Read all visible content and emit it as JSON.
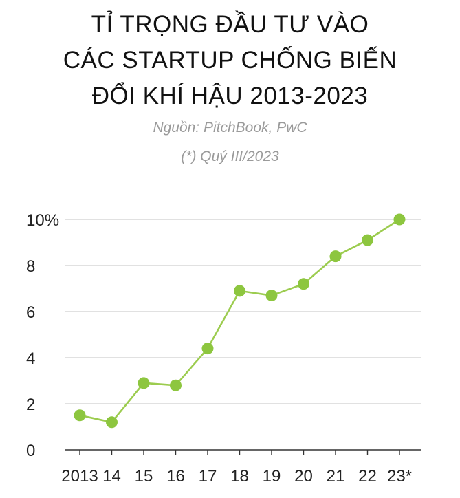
{
  "title_lines": [
    "TỈ TRỌNG ĐẦU TƯ VÀO",
    "CÁC STARTUP CHỐNG BIẾN",
    "ĐỔI KHÍ HẬU 2013-2023"
  ],
  "source": "Nguồn: PitchBook, PwC",
  "note": "(*) Quý III/2023",
  "colors": {
    "line": "#9ccc4f",
    "marker": "#8dc63f",
    "grid": "#cfcfcf",
    "axis": "#333333",
    "text": "#222222"
  },
  "chart_data": {
    "type": "line",
    "title": "TỈ TRỌNG ĐẦU TƯ VÀO CÁC STARTUP CHỐNG BIẾN ĐỔI KHÍ HẬU 2013-2023",
    "categories": [
      "2013",
      "14",
      "15",
      "16",
      "17",
      "18",
      "19",
      "20",
      "21",
      "22",
      "23*"
    ],
    "series": [
      {
        "name": "Tỉ trọng đầu tư",
        "values": [
          1.5,
          1.2,
          2.9,
          2.8,
          4.4,
          6.9,
          6.7,
          7.2,
          8.4,
          9.1,
          10.0
        ]
      }
    ],
    "y_ticks": [
      {
        "value": 0,
        "label": "0"
      },
      {
        "value": 2,
        "label": "2"
      },
      {
        "value": 4,
        "label": "4"
      },
      {
        "value": 6,
        "label": "6"
      },
      {
        "value": 8,
        "label": "8"
      },
      {
        "value": 10,
        "label": "10%"
      }
    ],
    "ylim": [
      0,
      10
    ],
    "xlabel": "",
    "ylabel": "",
    "grid": true,
    "legend": "none"
  }
}
